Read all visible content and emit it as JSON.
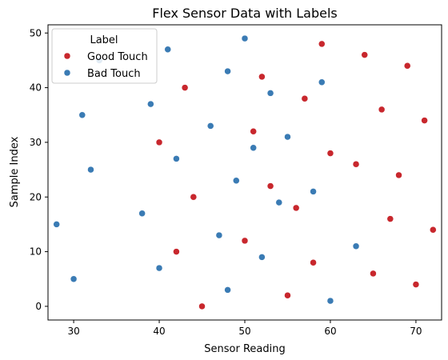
{
  "chart_data": {
    "type": "scatter",
    "title": "Flex Sensor Data with Labels",
    "xlabel": "Sensor Reading",
    "ylabel": "Sample Index",
    "xlim": [
      27,
      73
    ],
    "ylim": [
      -2.5,
      51.5
    ],
    "xticks": [
      30,
      40,
      50,
      60,
      70
    ],
    "yticks": [
      0,
      10,
      20,
      30,
      40,
      50
    ],
    "grid": false,
    "legend": {
      "title": "Label",
      "placement": "top-left"
    },
    "series": [
      {
        "name": "Good Touch",
        "color": "#c8272d",
        "points": [
          {
            "x": 45,
            "y": 0
          },
          {
            "x": 55,
            "y": 2
          },
          {
            "x": 65,
            "y": 6
          },
          {
            "x": 70,
            "y": 4
          },
          {
            "x": 58,
            "y": 8
          },
          {
            "x": 42,
            "y": 10
          },
          {
            "x": 50,
            "y": 12
          },
          {
            "x": 72,
            "y": 14
          },
          {
            "x": 67,
            "y": 16
          },
          {
            "x": 56,
            "y": 18
          },
          {
            "x": 44,
            "y": 20
          },
          {
            "x": 53,
            "y": 22
          },
          {
            "x": 68,
            "y": 24
          },
          {
            "x": 63,
            "y": 26
          },
          {
            "x": 60,
            "y": 28
          },
          {
            "x": 40,
            "y": 30
          },
          {
            "x": 51,
            "y": 32
          },
          {
            "x": 71,
            "y": 34
          },
          {
            "x": 66,
            "y": 36
          },
          {
            "x": 57,
            "y": 38
          },
          {
            "x": 43,
            "y": 40
          },
          {
            "x": 52,
            "y": 42
          },
          {
            "x": 69,
            "y": 44
          },
          {
            "x": 64,
            "y": 46
          },
          {
            "x": 59,
            "y": 48
          }
        ]
      },
      {
        "name": "Bad Touch",
        "color": "#3a7bb4",
        "points": [
          {
            "x": 60,
            "y": 1
          },
          {
            "x": 48,
            "y": 3
          },
          {
            "x": 30,
            "y": 5
          },
          {
            "x": 40,
            "y": 7
          },
          {
            "x": 52,
            "y": 9
          },
          {
            "x": 63,
            "y": 11
          },
          {
            "x": 47,
            "y": 13
          },
          {
            "x": 28,
            "y": 15
          },
          {
            "x": 38,
            "y": 17
          },
          {
            "x": 54,
            "y": 19
          },
          {
            "x": 58,
            "y": 21
          },
          {
            "x": 49,
            "y": 23
          },
          {
            "x": 32,
            "y": 25
          },
          {
            "x": 42,
            "y": 27
          },
          {
            "x": 51,
            "y": 29
          },
          {
            "x": 55,
            "y": 31
          },
          {
            "x": 46,
            "y": 33
          },
          {
            "x": 31,
            "y": 35
          },
          {
            "x": 39,
            "y": 37
          },
          {
            "x": 53,
            "y": 39
          },
          {
            "x": 59,
            "y": 41
          },
          {
            "x": 48,
            "y": 43
          },
          {
            "x": 33,
            "y": 45
          },
          {
            "x": 41,
            "y": 47
          },
          {
            "x": 50,
            "y": 49
          }
        ]
      }
    ]
  }
}
